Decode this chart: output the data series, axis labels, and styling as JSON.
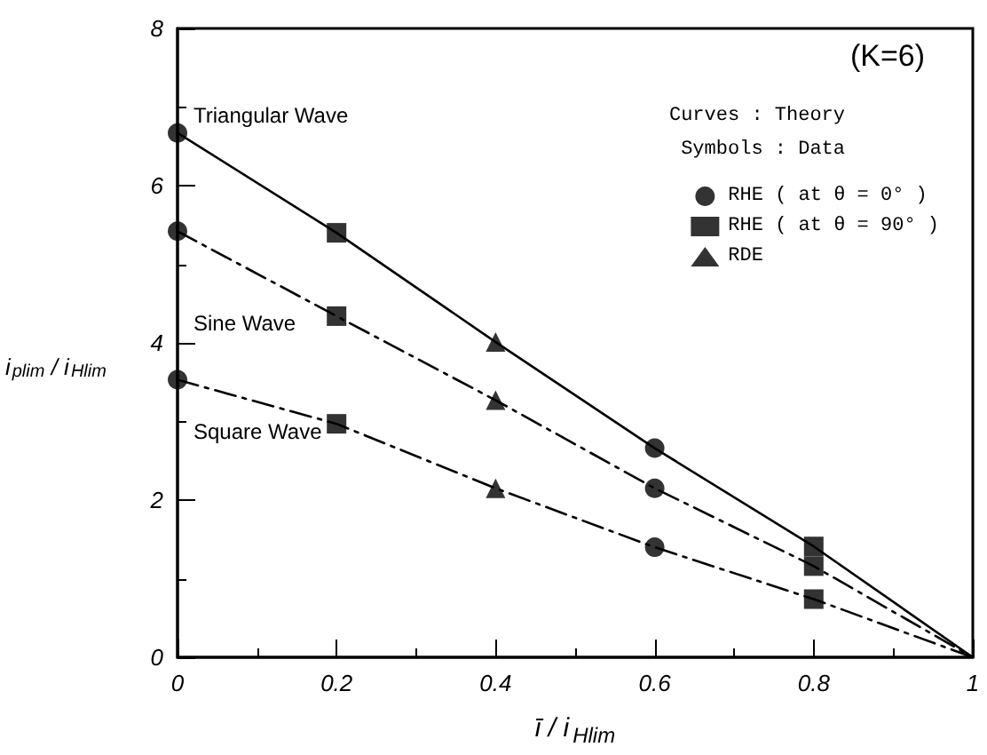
{
  "chart_data": {
    "type": "line",
    "title": "(K=6)",
    "xlabel": "ī / i$_{Hlim}$",
    "ylabel": "i$_{plim}$ / i$_{Hlim}$",
    "annotations": [
      "Curves : Theory",
      "Symbols : Data"
    ],
    "xlim": [
      0,
      1
    ],
    "xticks": [
      0,
      0.2,
      0.4,
      0.6,
      0.8,
      1
    ],
    "ylim": [
      0,
      8
    ],
    "yticks": [
      0,
      2,
      4,
      6,
      8
    ],
    "legend": "top right",
    "series": [
      {
        "name": "Triangular Wave",
        "color": "#000000",
        "line_style": "solid",
        "marker": "none",
        "x": [
          0,
          0.2,
          0.4,
          0.6,
          0.8,
          1
        ],
        "values": [
          6.67,
          5.4,
          4.01,
          2.66,
          1.41,
          0
        ]
      },
      {
        "name": "Sine Wave",
        "color": "#000000",
        "line_style": "dashed",
        "marker": "none",
        "x": [
          0,
          0.2,
          0.4,
          0.6,
          0.8,
          1
        ],
        "values": [
          5.42,
          4.34,
          3.27,
          2.15,
          1.16,
          0
        ]
      },
      {
        "name": "Square Wave",
        "color": "#000000",
        "line_style": "dashed",
        "marker": "none",
        "x": [
          0,
          0.2,
          0.4,
          0.6,
          0.8,
          1
        ],
        "values": [
          3.53,
          2.97,
          2.15,
          1.4,
          0.74,
          0
        ]
      },
      {
        "name": "RHE ( at θ = 0° )",
        "type": "scatter",
        "color": "#000000",
        "marker": "circle",
        "x": [
          0,
          0,
          0,
          0.6,
          0.6,
          0.6
        ],
        "values": [
          6.67,
          5.42,
          3.53,
          2.66,
          2.15,
          1.4
        ]
      },
      {
        "name": "RHE ( at θ = 90° )",
        "type": "scatter",
        "color": "#000000",
        "marker": "square",
        "x": [
          0.2,
          0.2,
          0.2,
          0.8,
          0.8,
          0.8
        ],
        "values": [
          5.4,
          4.34,
          2.97,
          1.41,
          1.16,
          0.74
        ]
      },
      {
        "name": "RDE",
        "type": "scatter",
        "color": "#000000",
        "marker": "triangle",
        "x": [
          0.4,
          0.4,
          0.4
        ],
        "values": [
          4.01,
          3.27,
          2.15
        ]
      }
    ]
  }
}
